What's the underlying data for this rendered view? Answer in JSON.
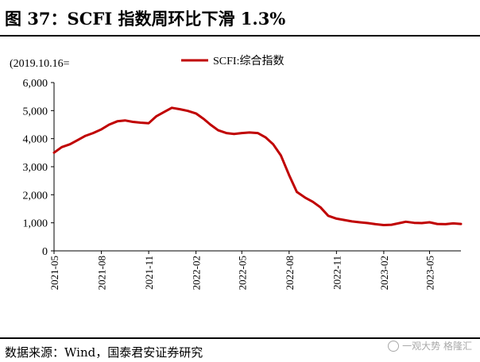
{
  "header": {
    "title": "图 37：SCFI 指数周环比下滑 1.3%"
  },
  "footer": {
    "source": "数据来源：Wind，国泰君安证券研究"
  },
  "watermark": {
    "text": "一观大势 格隆汇"
  },
  "chart_data": {
    "type": "line",
    "title": "",
    "note": "(2019.10.16=",
    "xlabel": "",
    "ylabel": "",
    "ylim": [
      0,
      6000
    ],
    "y_ticks": [
      0,
      1000,
      2000,
      3000,
      4000,
      5000,
      6000
    ],
    "y_tick_labels": [
      "0",
      "1,000",
      "2,000",
      "3,000",
      "4,000",
      "5,000",
      "6,000"
    ],
    "x_ticks": [
      "2021-05",
      "2021-08",
      "2021-11",
      "2022-02",
      "2022-05",
      "2022-08",
      "2022-11",
      "2023-02",
      "2023-05"
    ],
    "x_range": [
      "2021-05",
      "2023-07"
    ],
    "legend": {
      "position": "top",
      "label": "SCFI:综合指数"
    },
    "series": [
      {
        "name": "SCFI:综合指数",
        "color": "#c00000",
        "points": [
          [
            "2021-05-01",
            3500
          ],
          [
            "2021-05-16",
            3700
          ],
          [
            "2021-06-01",
            3800
          ],
          [
            "2021-06-16",
            3950
          ],
          [
            "2021-07-01",
            4100
          ],
          [
            "2021-07-16",
            4200
          ],
          [
            "2021-08-01",
            4330
          ],
          [
            "2021-08-16",
            4500
          ],
          [
            "2021-09-01",
            4620
          ],
          [
            "2021-09-16",
            4650
          ],
          [
            "2021-10-01",
            4600
          ],
          [
            "2021-10-16",
            4570
          ],
          [
            "2021-11-01",
            4550
          ],
          [
            "2021-11-16",
            4800
          ],
          [
            "2021-12-01",
            4950
          ],
          [
            "2021-12-16",
            5100
          ],
          [
            "2022-01-01",
            5050
          ],
          [
            "2022-01-16",
            4990
          ],
          [
            "2022-02-01",
            4900
          ],
          [
            "2022-02-16",
            4700
          ],
          [
            "2022-03-01",
            4500
          ],
          [
            "2022-03-16",
            4300
          ],
          [
            "2022-04-01",
            4200
          ],
          [
            "2022-04-16",
            4170
          ],
          [
            "2022-05-01",
            4200
          ],
          [
            "2022-05-16",
            4220
          ],
          [
            "2022-06-01",
            4200
          ],
          [
            "2022-06-16",
            4050
          ],
          [
            "2022-07-01",
            3800
          ],
          [
            "2022-07-16",
            3400
          ],
          [
            "2022-08-01",
            2700
          ],
          [
            "2022-08-16",
            2100
          ],
          [
            "2022-09-01",
            1900
          ],
          [
            "2022-09-16",
            1750
          ],
          [
            "2022-10-01",
            1550
          ],
          [
            "2022-10-16",
            1250
          ],
          [
            "2022-11-01",
            1150
          ],
          [
            "2022-11-16",
            1100
          ],
          [
            "2022-12-01",
            1050
          ],
          [
            "2022-12-16",
            1020
          ],
          [
            "2023-01-01",
            990
          ],
          [
            "2023-01-16",
            950
          ],
          [
            "2023-02-01",
            920
          ],
          [
            "2023-02-16",
            930
          ],
          [
            "2023-03-01",
            980
          ],
          [
            "2023-03-16",
            1040
          ],
          [
            "2023-04-01",
            1000
          ],
          [
            "2023-04-16",
            990
          ],
          [
            "2023-05-01",
            1020
          ],
          [
            "2023-05-16",
            960
          ],
          [
            "2023-06-01",
            950
          ],
          [
            "2023-06-16",
            980
          ],
          [
            "2023-07-01",
            960
          ]
        ]
      }
    ]
  }
}
